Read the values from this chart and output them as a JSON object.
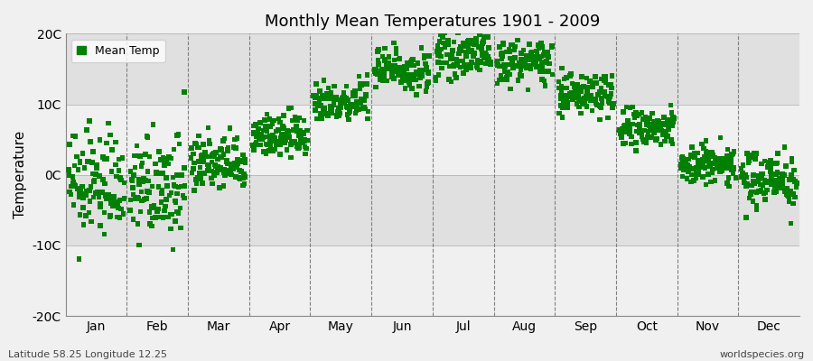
{
  "title": "Monthly Mean Temperatures 1901 - 2009",
  "ylabel": "Temperature",
  "subtitle_left": "Latitude 58.25 Longitude 12.25",
  "subtitle_right": "worldspecies.org",
  "ylim": [
    -20,
    20
  ],
  "yticks": [
    -20,
    -10,
    0,
    10,
    20
  ],
  "ytick_labels": [
    "-20C",
    "-10C",
    "0C",
    "10C",
    "20C"
  ],
  "months": [
    "Jan",
    "Feb",
    "Mar",
    "Apr",
    "May",
    "Jun",
    "Jul",
    "Aug",
    "Sep",
    "Oct",
    "Nov",
    "Dec"
  ],
  "marker_color": "#008000",
  "marker_size": 4,
  "bg_color": "#F0F0F0",
  "band_color_light": "#F0F0F0",
  "band_color_dark": "#E0E0E0",
  "legend_label": "Mean Temp",
  "n_years": 109,
  "year_start": 1901,
  "year_end": 2009,
  "monthly_means": [
    -1.5,
    -2.0,
    1.5,
    5.5,
    10.5,
    15.0,
    17.0,
    16.0,
    11.5,
    6.5,
    1.5,
    -0.5
  ],
  "monthly_stds": [
    3.5,
    3.5,
    2.0,
    1.5,
    1.5,
    1.5,
    1.5,
    1.5,
    1.5,
    1.5,
    1.5,
    2.0
  ]
}
